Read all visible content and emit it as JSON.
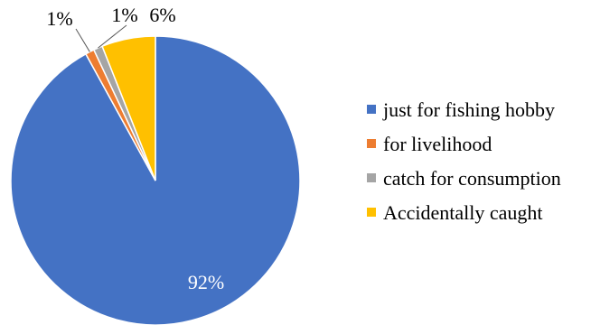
{
  "chart_data": {
    "type": "pie",
    "categories": [
      "just for fishing hobby",
      "for livelihood",
      "catch for consumption",
      "Accidentally caught"
    ],
    "values": [
      92,
      1,
      1,
      6
    ],
    "data_labels": [
      "92%",
      "1%",
      "1%",
      "6%"
    ],
    "colors": [
      "#4472C4",
      "#ED7D31",
      "#A5A5A5",
      "#FFC000"
    ],
    "legend_position": "right",
    "title": ""
  }
}
